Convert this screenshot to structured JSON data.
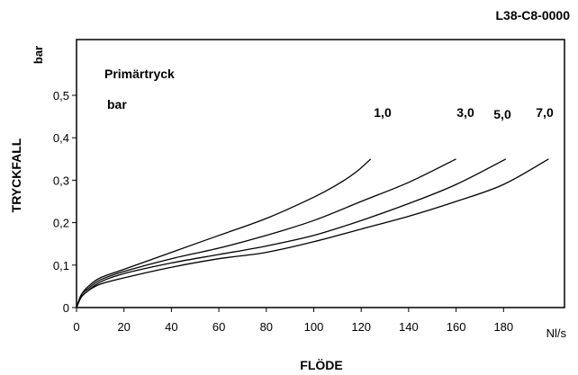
{
  "chart_data": {
    "type": "line",
    "code": "L38-C8-0000",
    "ylabel": "TRYCKFALL",
    "yunit": "bar",
    "xlabel": "FLÖDE",
    "xunit": "Nl/s",
    "legend_title": "Primärtryck",
    "legend_unit": "bar",
    "xlim": [
      0,
      200
    ],
    "ylim": [
      0,
      0.55
    ],
    "xticks": [
      0,
      20,
      40,
      60,
      80,
      100,
      120,
      140,
      160,
      180
    ],
    "xtick_labels": [
      "0",
      "20",
      "40",
      "60",
      "80",
      "100",
      "120",
      "140",
      "160",
      "180"
    ],
    "yticks": [
      0,
      0.1,
      0.2,
      0.3,
      0.4,
      0.5
    ],
    "ytick_labels": [
      "0",
      "0,1",
      "0,2",
      "0,3",
      "0,4",
      "0,5"
    ],
    "grid": false,
    "series": [
      {
        "name": "1,0",
        "x": [
          0,
          2,
          5,
          10,
          20,
          40,
          60,
          80,
          100,
          110,
          118,
          124
        ],
        "y": [
          0,
          0.03,
          0.05,
          0.07,
          0.09,
          0.13,
          0.17,
          0.21,
          0.26,
          0.29,
          0.32,
          0.35
        ]
      },
      {
        "name": "3,0",
        "x": [
          0,
          2,
          5,
          10,
          20,
          40,
          60,
          80,
          100,
          120,
          140,
          160
        ],
        "y": [
          0,
          0.03,
          0.045,
          0.065,
          0.085,
          0.115,
          0.14,
          0.17,
          0.205,
          0.25,
          0.295,
          0.35
        ]
      },
      {
        "name": "5,0",
        "x": [
          0,
          2,
          5,
          10,
          20,
          40,
          60,
          80,
          100,
          120,
          140,
          160,
          181
        ],
        "y": [
          0,
          0.025,
          0.04,
          0.06,
          0.08,
          0.105,
          0.125,
          0.145,
          0.17,
          0.205,
          0.245,
          0.29,
          0.35
        ]
      },
      {
        "name": "7,0",
        "x": [
          0,
          2,
          5,
          10,
          20,
          40,
          60,
          80,
          100,
          120,
          140,
          160,
          180,
          199
        ],
        "y": [
          0,
          0.025,
          0.04,
          0.055,
          0.07,
          0.095,
          0.115,
          0.13,
          0.155,
          0.185,
          0.215,
          0.25,
          0.29,
          0.35
        ]
      }
    ]
  }
}
